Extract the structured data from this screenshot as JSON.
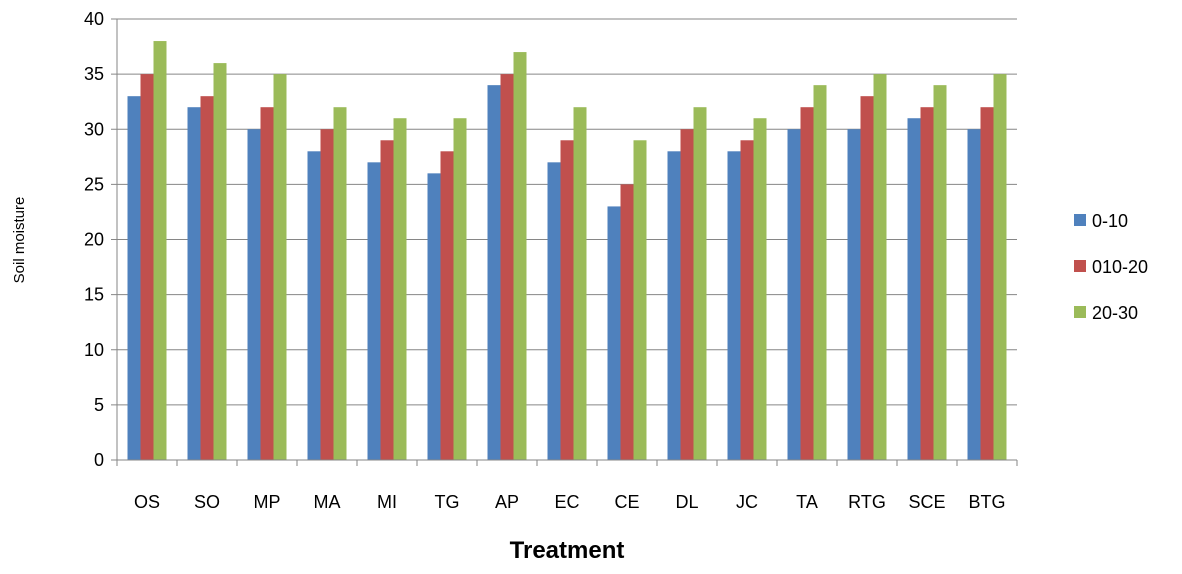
{
  "chart_data": {
    "type": "bar",
    "title": "",
    "xlabel": "Treatment",
    "ylabel": "Soil moisture",
    "ylim": [
      0,
      40
    ],
    "yticks": [
      0,
      5,
      10,
      15,
      20,
      25,
      30,
      35,
      40
    ],
    "grid": true,
    "legend_position": "right",
    "categories": [
      "OS",
      "SO",
      "MP",
      "MA",
      "MI",
      "TG",
      "AP",
      "EC",
      "CE",
      "DL",
      "JC",
      "TA",
      "RTG",
      "SCE",
      "BTG"
    ],
    "series": [
      {
        "name": "0-10",
        "color": "#4F81BD",
        "values": [
          33,
          32,
          30,
          28,
          27,
          26,
          34,
          27,
          23,
          28,
          28,
          30,
          30,
          31,
          30
        ]
      },
      {
        "name": "010-20",
        "color": "#C0504D",
        "values": [
          35,
          33,
          32,
          30,
          29,
          28,
          35,
          29,
          25,
          30,
          29,
          32,
          33,
          32,
          32
        ]
      },
      {
        "name": "20-30",
        "color": "#9BBB59",
        "values": [
          38,
          36,
          35,
          32,
          31,
          31,
          37,
          32,
          29,
          32,
          31,
          34,
          35,
          34,
          35
        ]
      }
    ]
  }
}
